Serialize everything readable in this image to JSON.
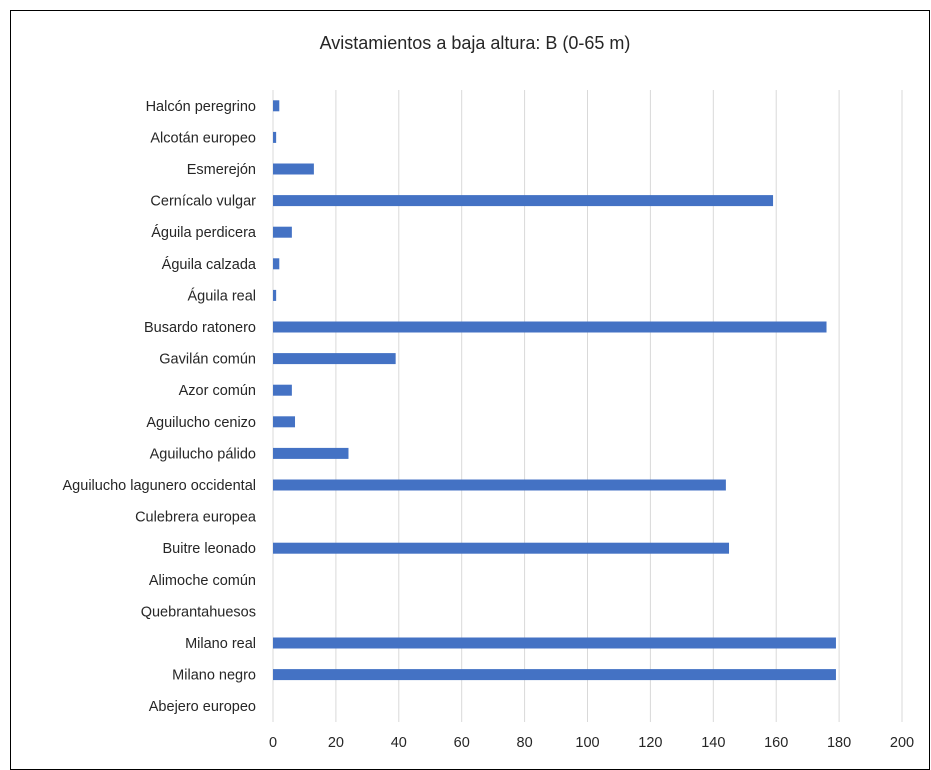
{
  "chart_data": {
    "type": "bar",
    "orientation": "horizontal",
    "title": "Avistamientos a baja altura: B (0-65 m)",
    "xlabel": "",
    "ylabel": "",
    "xlim": [
      0,
      200
    ],
    "x_ticks": [
      "0",
      "20",
      "40",
      "60",
      "80",
      "100",
      "120",
      "140",
      "160",
      "180",
      "200"
    ],
    "grid": "vertical",
    "legend": "none",
    "bar_color": "#4472C4",
    "categories": [
      "Halcón peregrino",
      "Alcotán europeo",
      "Esmerejón",
      "Cernícalo vulgar",
      "Águila perdicera",
      "Águila calzada",
      "Águila real",
      "Busardo ratonero",
      "Gavilán común",
      "Azor común",
      "Aguilucho cenizo",
      "Aguilucho pálido",
      "Aguilucho lagunero occidental",
      "Culebrera europea",
      "Buitre leonado",
      "Alimoche común",
      "Quebrantahuesos",
      "Milano real",
      "Milano negro",
      "Abejero europeo"
    ],
    "values": [
      2,
      1,
      13,
      159,
      6,
      2,
      1,
      176,
      39,
      6,
      7,
      24,
      144,
      0,
      145,
      0,
      0,
      179,
      179,
      0
    ]
  }
}
